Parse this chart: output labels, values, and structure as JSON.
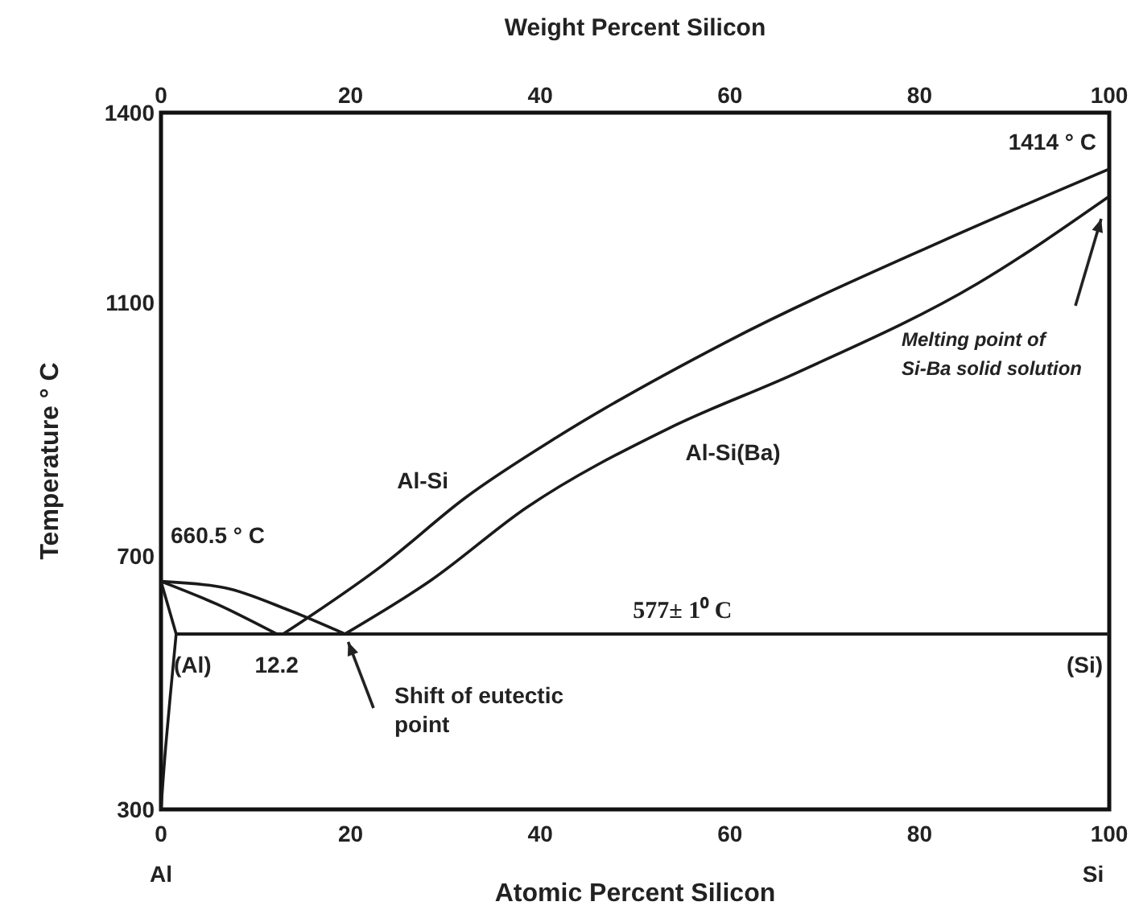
{
  "chart_data": {
    "type": "line",
    "xlabel": "Atomic Percent Silicon",
    "x2label": "Weight Percent Silicon",
    "ylabel": "Temperature ° C",
    "xlim": [
      0,
      100
    ],
    "xticks": [
      0,
      20,
      40,
      60,
      80,
      100
    ],
    "x2lim": [
      0,
      100
    ],
    "x2ticks": [
      0,
      20,
      40,
      60,
      80,
      100
    ],
    "ylim": [
      300,
      1400
    ],
    "yticks": [
      300,
      700,
      1100,
      1400
    ],
    "grid": false,
    "marker": "none",
    "line_style": "solid",
    "series": [
      {
        "name": "Al-Si",
        "color": "#1a1a1a",
        "x": [
          12.9,
          23.5,
          32,
          41.9,
          59.5,
          82.2,
          100
        ],
        "values": [
          577,
          687,
          791,
          889,
          1037,
          1196,
          1311
        ]
      },
      {
        "name": "Al-Si(Ba)",
        "color": "#1a1a1a",
        "x": [
          19.4,
          28.5,
          38.5,
          53.6,
          67,
          86.1,
          100
        ],
        "values": [
          577,
          662,
          776,
          902,
          989,
          1130,
          1268
        ]
      },
      {
        "color": "#1a1a1a",
        "x": [
          0,
          5.9,
          12.2
        ],
        "values": [
          660,
          624,
          577
        ]
      },
      {
        "color": "#1a1a1a",
        "x": [
          0,
          6.7,
          13.4,
          19.4
        ],
        "values": [
          660,
          650,
          615,
          577
        ]
      },
      {
        "color": "#1a1a1a",
        "x": [
          0,
          1.6
        ],
        "values": [
          660,
          577
        ]
      },
      {
        "color": "#1a1a1a",
        "x": [
          1.6,
          0.5,
          0
        ],
        "values": [
          577,
          400,
          300
        ]
      }
    ],
    "ref_lines": [
      {
        "axis": "y",
        "value": 577,
        "label": "577± 1⁰ C",
        "color": "#1a1a1a"
      }
    ],
    "annotations": [
      {
        "text": "660.5 ° C",
        "x": 0,
        "y": 660
      },
      {
        "text": "12.2",
        "x": 12.2,
        "y": 577
      },
      "Shift of eutectic point",
      {
        "text": "1414 ° C",
        "x": 100,
        "y": 1311
      },
      "Melting point  of Si-Ba solid solution",
      "(Al)",
      "(Si)",
      "Al",
      "Si"
    ]
  }
}
